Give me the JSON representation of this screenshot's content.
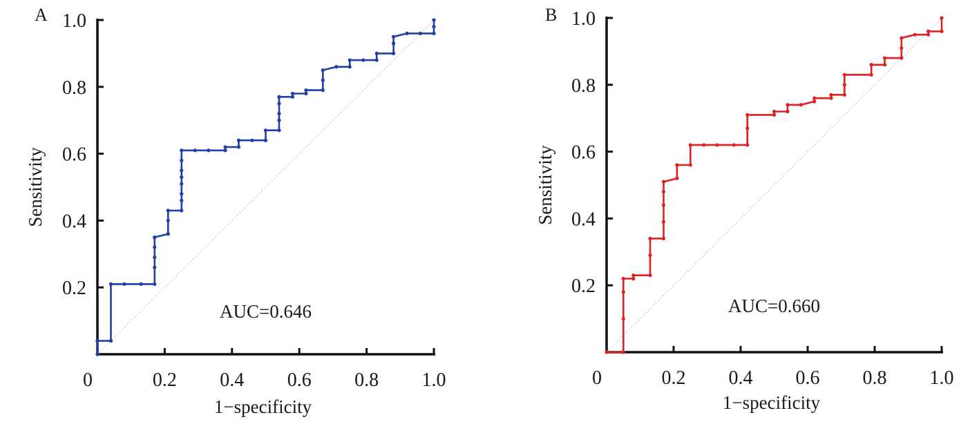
{
  "chart_data": [
    {
      "type": "line",
      "panel_label": "A",
      "xlabel": "1−specificity",
      "ylabel": "Sensitivity",
      "xlim": [
        0,
        1
      ],
      "ylim": [
        0,
        1
      ],
      "x_ticks": [
        0,
        0.2,
        0.4,
        0.6,
        0.8,
        1.0
      ],
      "x_tick_labels": [
        "0",
        "0.2",
        "0.4",
        "0.6",
        "0.8",
        "1.0"
      ],
      "y_ticks": [
        0.2,
        0.4,
        0.6,
        0.8,
        1.0
      ],
      "y_tick_labels": [
        "0.2",
        "0.4",
        "0.6",
        "0.8",
        "1.0"
      ],
      "annotation": "AUC=0.646",
      "annotation_at": [
        0.5,
        0.11
      ],
      "grid": false,
      "color": "#1f3fa6",
      "reference_line": true,
      "series": [
        {
          "x": [
            0,
            0,
            0.04,
            0.04,
            0.08,
            0.13,
            0.17,
            0.17,
            0.17,
            0.17,
            0.17,
            0.17,
            0.21,
            0.21,
            0.21,
            0.25,
            0.25,
            0.25,
            0.25,
            0.25,
            0.25,
            0.25,
            0.25,
            0.29,
            0.33,
            0.38,
            0.38,
            0.42,
            0.42,
            0.46,
            0.5,
            0.5,
            0.54,
            0.54,
            0.54,
            0.54,
            0.54,
            0.54,
            0.58,
            0.58,
            0.62,
            0.62,
            0.67,
            0.67,
            0.67,
            0.71,
            0.75,
            0.75,
            0.79,
            0.83,
            0.83,
            0.88,
            0.88,
            0.88,
            0.92,
            0.96,
            1.0,
            1.0,
            1.0
          ],
          "y": [
            0,
            0.04,
            0.04,
            0.21,
            0.21,
            0.21,
            0.21,
            0.26,
            0.29,
            0.32,
            0.35,
            0.35,
            0.36,
            0.4,
            0.43,
            0.43,
            0.46,
            0.48,
            0.51,
            0.53,
            0.55,
            0.58,
            0.61,
            0.61,
            0.61,
            0.61,
            0.62,
            0.62,
            0.64,
            0.64,
            0.64,
            0.67,
            0.67,
            0.7,
            0.72,
            0.75,
            0.77,
            0.77,
            0.77,
            0.78,
            0.78,
            0.79,
            0.79,
            0.82,
            0.85,
            0.86,
            0.86,
            0.88,
            0.88,
            0.88,
            0.9,
            0.9,
            0.93,
            0.95,
            0.96,
            0.96,
            0.96,
            0.98,
            1.0
          ]
        }
      ]
    },
    {
      "type": "line",
      "panel_label": "B",
      "xlabel": "1−specificity",
      "ylabel": "Sensitivity",
      "xlim": [
        0,
        1
      ],
      "ylim": [
        0,
        1
      ],
      "x_ticks": [
        0,
        0.2,
        0.4,
        0.6,
        0.8,
        1.0
      ],
      "x_tick_labels": [
        "0",
        "0.2",
        "0.4",
        "0.6",
        "0.8",
        "1.0"
      ],
      "y_ticks": [
        0.2,
        0.4,
        0.6,
        0.8,
        1.0
      ],
      "y_tick_labels": [
        "0.2",
        "0.4",
        "0.6",
        "0.8",
        "1.0"
      ],
      "annotation": "AUC=0.660",
      "annotation_at": [
        0.5,
        0.12
      ],
      "grid": false,
      "color": "#e02020",
      "reference_line": true,
      "series": [
        {
          "x": [
            0,
            0.05,
            0.05,
            0.05,
            0.05,
            0.08,
            0.08,
            0.13,
            0.13,
            0.13,
            0.17,
            0.17,
            0.17,
            0.17,
            0.17,
            0.21,
            0.21,
            0.25,
            0.25,
            0.29,
            0.33,
            0.38,
            0.42,
            0.42,
            0.42,
            0.5,
            0.5,
            0.54,
            0.54,
            0.58,
            0.62,
            0.62,
            0.67,
            0.67,
            0.71,
            0.71,
            0.71,
            0.79,
            0.79,
            0.83,
            0.83,
            0.88,
            0.88,
            0.88,
            0.92,
            0.96,
            0.96,
            1.0,
            1.0
          ],
          "y": [
            0,
            0,
            0.1,
            0.18,
            0.22,
            0.22,
            0.23,
            0.23,
            0.29,
            0.34,
            0.34,
            0.39,
            0.44,
            0.48,
            0.51,
            0.52,
            0.56,
            0.56,
            0.62,
            0.62,
            0.62,
            0.62,
            0.62,
            0.67,
            0.71,
            0.71,
            0.72,
            0.72,
            0.74,
            0.74,
            0.75,
            0.76,
            0.76,
            0.77,
            0.77,
            0.8,
            0.83,
            0.83,
            0.86,
            0.86,
            0.88,
            0.88,
            0.91,
            0.94,
            0.95,
            0.95,
            0.96,
            0.96,
            1.0
          ]
        }
      ]
    }
  ]
}
